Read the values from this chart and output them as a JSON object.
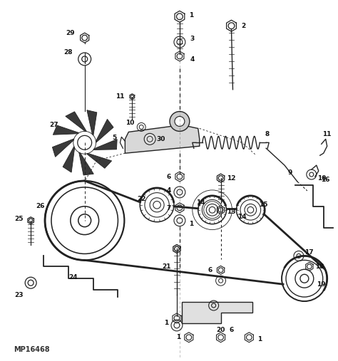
{
  "bg_color": "#ffffff",
  "line_color": "#222222",
  "watermark": "MP16468",
  "figsize": [
    4.74,
    5.07
  ],
  "dpi": 100
}
